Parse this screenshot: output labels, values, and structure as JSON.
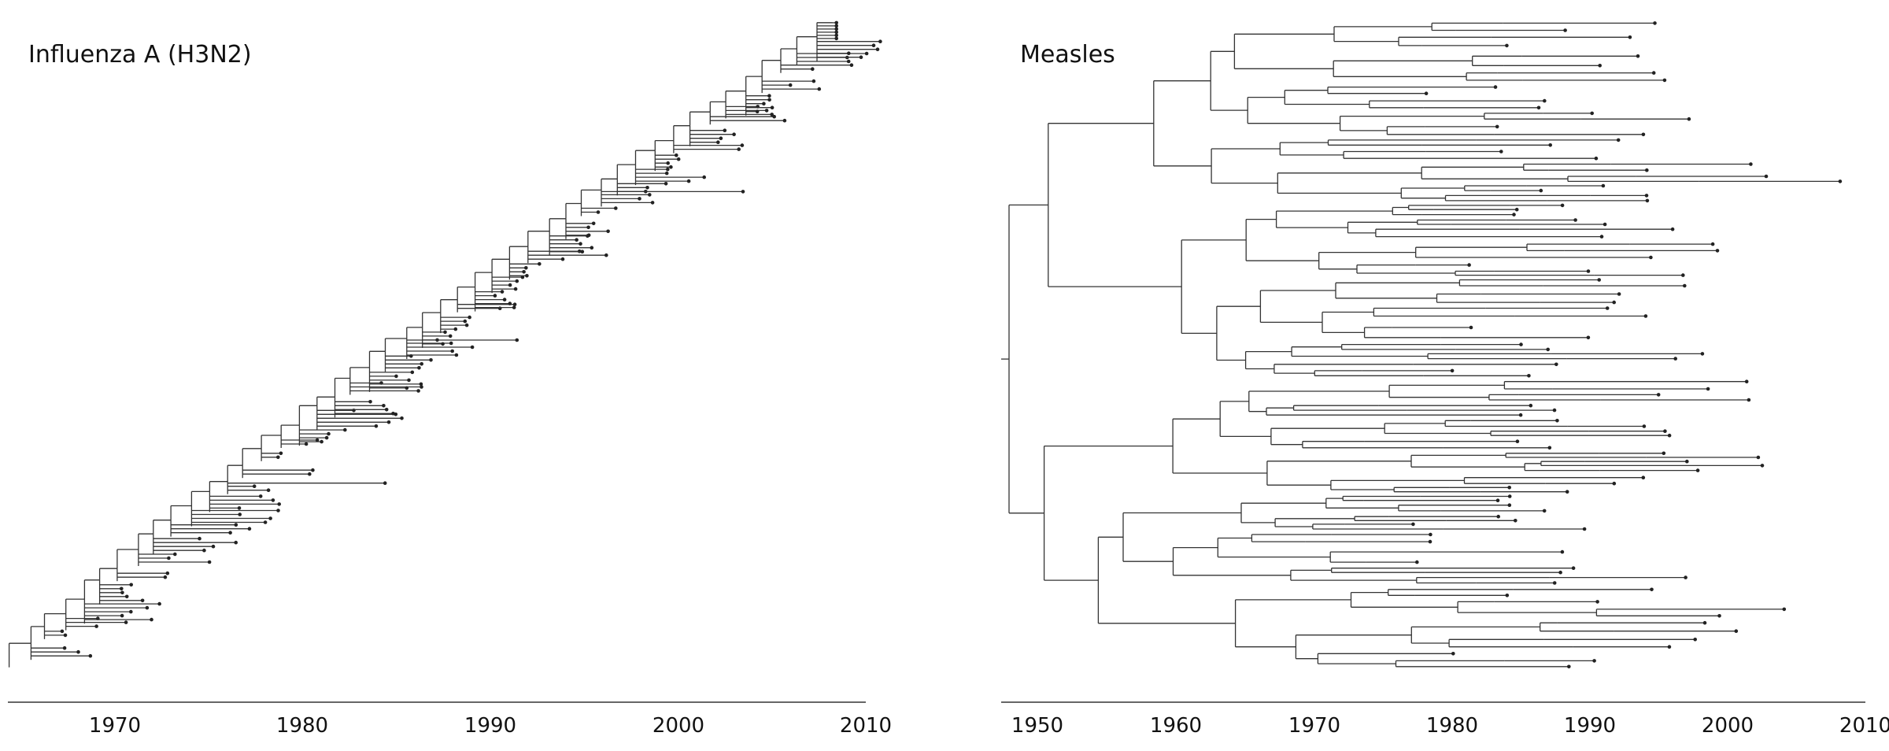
{
  "panels": {
    "left": {
      "title": "Influenza A (H3N2)",
      "ticks": [
        "1970",
        "1980",
        "1990",
        "2000",
        "2010"
      ]
    },
    "right": {
      "title": "Measles",
      "ticks": [
        "1950",
        "1960",
        "1970",
        "1980",
        "1990",
        "2000",
        "2010"
      ]
    }
  }
}
